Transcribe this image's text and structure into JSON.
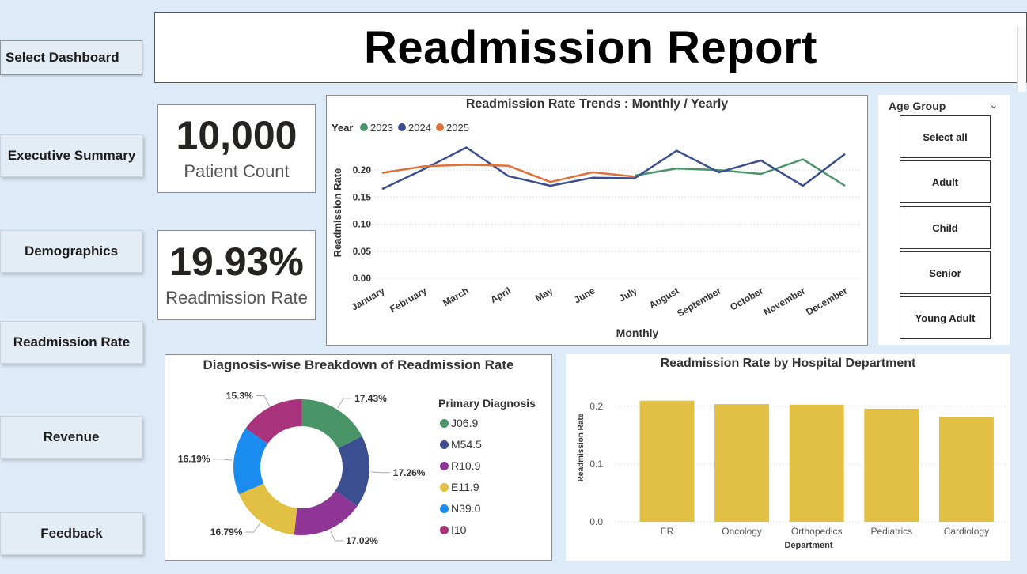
{
  "nav": {
    "select_dashboard": "Select Dashboard",
    "items": [
      {
        "label": "Executive Summary"
      },
      {
        "label": "Demographics"
      },
      {
        "label": "Readmission Rate"
      },
      {
        "label": "Revenue"
      },
      {
        "label": "Feedback"
      }
    ]
  },
  "header": {
    "title": "Readmission Report"
  },
  "kpis": {
    "patient_count": {
      "value": "10,000",
      "label": "Patient Count"
    },
    "readmission_rate": {
      "value": "19.93%",
      "label": "Readmission Rate"
    }
  },
  "slicer": {
    "title": "Age Group",
    "options": [
      "Select all",
      "Adult",
      "Child",
      "Senior",
      "Young Adult"
    ]
  },
  "colors": {
    "y2023": "#4a9568",
    "y2024": "#3b4e8f",
    "y2025": "#e0703a",
    "bar": "#e1c044",
    "pie": [
      "#4a9568",
      "#3b4e8f",
      "#8e3596",
      "#e1c044",
      "#1a8cf0",
      "#a8327b"
    ]
  },
  "chart_data": [
    {
      "type": "line",
      "title": "Readmission Rate Trends : Monthly / Yearly",
      "legend_title": "Year",
      "xlabel": "Monthly",
      "ylabel": "Readmission Rate",
      "categories": [
        "January",
        "February",
        "March",
        "April",
        "May",
        "June",
        "July",
        "August",
        "September",
        "October",
        "November",
        "December"
      ],
      "yticks": [
        "0.00",
        "0.05",
        "0.10",
        "0.15",
        "0.20"
      ],
      "ylim": [
        0,
        0.25
      ],
      "series": [
        {
          "name": "2023",
          "values": [
            null,
            null,
            null,
            null,
            null,
            null,
            0.19,
            0.203,
            0.2,
            0.193,
            0.22,
            0.171
          ]
        },
        {
          "name": "2024",
          "values": [
            0.165,
            0.202,
            0.242,
            0.189,
            0.171,
            0.186,
            0.185,
            0.236,
            0.196,
            0.218,
            0.171,
            0.23
          ]
        },
        {
          "name": "2025",
          "values": [
            0.195,
            0.207,
            0.21,
            0.208,
            0.178,
            0.196,
            0.188,
            null,
            null,
            null,
            null,
            null
          ]
        }
      ],
      "legend_position": "top-left",
      "grid": true
    },
    {
      "type": "pie",
      "title": "Diagnosis-wise Breakdown of Readmission Rate",
      "legend_title": "Primary Diagnosis",
      "labels": [
        "J06.9",
        "M54.5",
        "R10.9",
        "E11.9",
        "N39.0",
        "I10"
      ],
      "values": [
        17.43,
        17.26,
        17.02,
        16.79,
        16.19,
        15.3
      ],
      "value_labels": [
        "17.43%",
        "17.26%",
        "17.02%",
        "16.79%",
        "16.19%",
        "15.3%"
      ]
    },
    {
      "type": "bar",
      "title": "Readmission Rate by Hospital Department",
      "xlabel": "Department",
      "ylabel": "Readmission Rate",
      "categories": [
        "ER",
        "Oncology",
        "Orthopedics",
        "Pediatrics",
        "Cardiology"
      ],
      "values": [
        0.21,
        0.204,
        0.203,
        0.196,
        0.182
      ],
      "yticks": [
        "0.0",
        "0.1",
        "0.2"
      ],
      "ylim": [
        0,
        0.2
      ]
    }
  ]
}
